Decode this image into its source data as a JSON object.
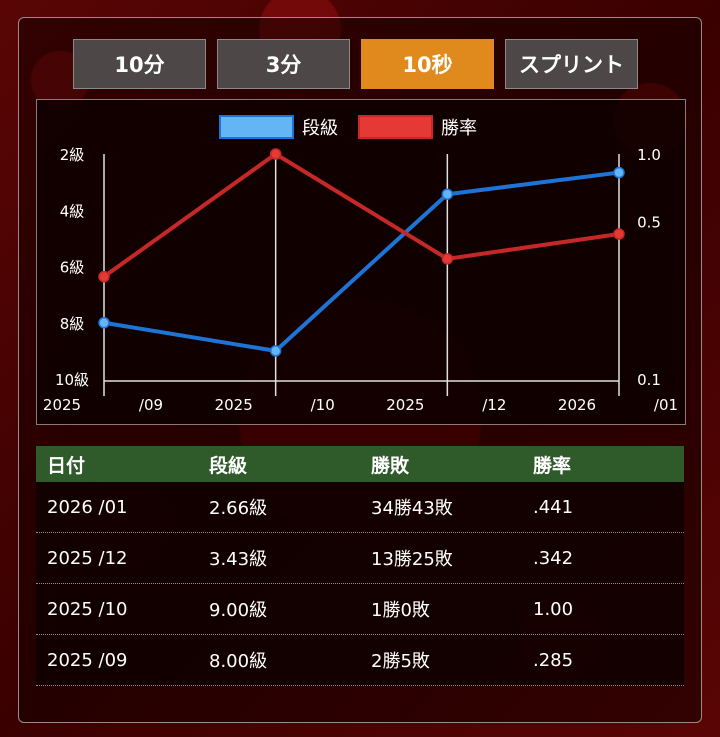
{
  "tabs": [
    {
      "label": "10分",
      "active": false
    },
    {
      "label": "3分",
      "active": false
    },
    {
      "label": "10秒",
      "active": true
    },
    {
      "label": "スプリント",
      "active": false
    }
  ],
  "chart_data": {
    "type": "line",
    "categories": [
      "2025 /09",
      "2025 /10",
      "2025 /12",
      "2026 /01"
    ],
    "x_tick_labels": [
      {
        "top": "2025",
        "bottom": "/09"
      },
      {
        "top": "2025",
        "bottom": "/10"
      },
      {
        "top": "2025",
        "bottom": "/12"
      },
      {
        "top": "2026",
        "bottom": "/01"
      }
    ],
    "series": [
      {
        "name": "段級",
        "axis": "left",
        "values": [
          8.0,
          9.0,
          3.43,
          2.66
        ],
        "color": "#1e74d6",
        "legend_color": "#64b5f6"
      },
      {
        "name": "勝率",
        "axis": "right",
        "values": [
          0.285,
          1.0,
          0.342,
          0.441
        ],
        "color": "#c62828",
        "legend_color": "#e53935"
      }
    ],
    "y_left": {
      "ticks": [
        2,
        4,
        6,
        8,
        10
      ],
      "tick_labels": [
        "2級",
        "4級",
        "6級",
        "8級",
        "10級"
      ],
      "range": [
        2,
        10
      ],
      "inverted": true
    },
    "y_right": {
      "ticks": [
        1.0,
        0.5,
        0.1
      ],
      "tick_labels": [
        "1.0",
        "0.5",
        "0.1"
      ],
      "range": [
        0.1,
        1.0
      ],
      "scale": "log"
    },
    "legend_placement": "top-center"
  },
  "table": {
    "headers": [
      "日付",
      "段級",
      "勝敗",
      "勝率"
    ],
    "rows": [
      [
        "2026 /01",
        "2.66級",
        "34勝43敗",
        ".441"
      ],
      [
        "2025 /12",
        "3.43級",
        "13勝25敗",
        ".342"
      ],
      [
        "2025 /10",
        "9.00級",
        "1勝0敗",
        "1.00"
      ],
      [
        "2025 /09",
        "8.00級",
        "2勝5敗",
        ".285"
      ]
    ]
  }
}
